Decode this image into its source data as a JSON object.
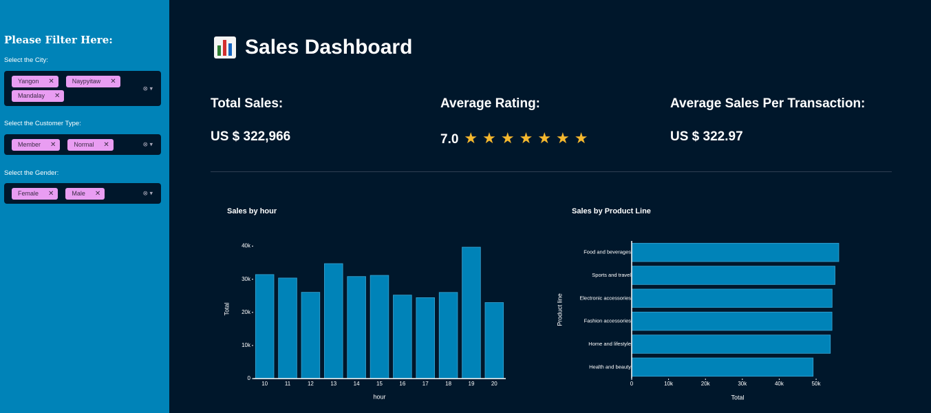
{
  "sidebar": {
    "header": "Please Filter Here:",
    "filters": [
      {
        "label": "Select the City:",
        "options": [
          "Yangon",
          "Naypyitaw",
          "Mandalay"
        ]
      },
      {
        "label": "Select the Customer Type:",
        "options": [
          "Member",
          "Normal"
        ]
      },
      {
        "label": "Select the Gender:",
        "options": [
          "Female",
          "Male"
        ]
      }
    ]
  },
  "header": {
    "title": "Sales Dashboard"
  },
  "kpis": [
    {
      "label": "Total Sales:",
      "value": "US $ 322,966"
    },
    {
      "label": "Average Rating:",
      "value": "7.0",
      "stars": "★★★★★★★"
    },
    {
      "label": "Average Sales Per Transaction:",
      "value": "US $ 322.97"
    }
  ],
  "chart_data": [
    {
      "type": "bar",
      "title": "Sales by hour",
      "x_label": "hour",
      "y_label": "Total",
      "color": "#0083b8",
      "categories": [
        "10",
        "11",
        "12",
        "13",
        "14",
        "15",
        "16",
        "17",
        "18",
        "19",
        "20"
      ],
      "values": [
        31421,
        30377,
        26066,
        34723,
        30828,
        31180,
        25226,
        24445,
        26031,
        39700,
        22970
      ],
      "ylim": [
        0,
        42000
      ],
      "yticks": [
        0,
        {
          "value": 10000,
          "label": "10k"
        },
        {
          "value": 20000,
          "label": "20k"
        },
        {
          "value": 30000,
          "label": "30k"
        },
        {
          "value": 40000,
          "label": "40k"
        }
      ]
    },
    {
      "type": "barh",
      "title": "Sales by Product Line",
      "x_label": "Total",
      "y_label": "Product line",
      "color": "#0083b8",
      "categories": [
        "Food and beverages",
        "Sports and travel",
        "Electronic accessories",
        "Fashion accessories",
        "Home and lifestyle",
        "Health and beauty"
      ],
      "values": [
        56145,
        55123,
        54338,
        54306,
        53862,
        49194
      ],
      "xlim": [
        0,
        58200
      ],
      "xticks": [
        0,
        {
          "value": 10000,
          "label": "10k"
        },
        {
          "value": 20000,
          "label": "20k"
        },
        {
          "value": 30000,
          "label": "30k"
        },
        {
          "value": 40000,
          "label": "40k"
        },
        {
          "value": 50000,
          "label": "50k"
        }
      ]
    }
  ]
}
